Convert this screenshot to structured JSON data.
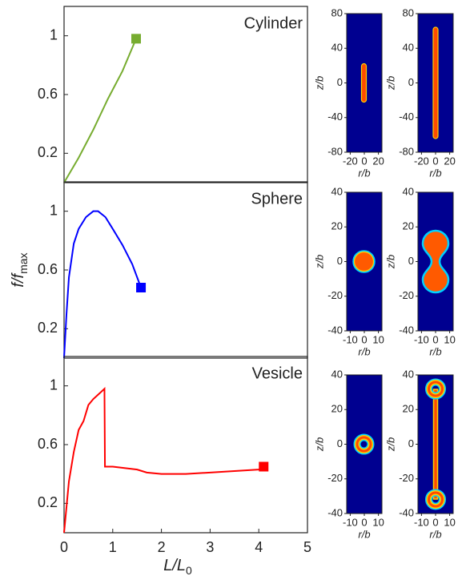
{
  "chart_data": [
    {
      "type": "line",
      "title": "Cylinder",
      "color": "#77ac30",
      "x": [
        0,
        0.3,
        0.6,
        0.9,
        1.2,
        1.48
      ],
      "values": [
        0,
        0.17,
        0.36,
        0.57,
        0.76,
        0.98
      ],
      "marker": {
        "x": 1.48,
        "y": 0.98
      },
      "xlim": [
        0,
        5
      ],
      "ylim": [
        0,
        1.2
      ],
      "yticks": [
        0.2,
        0.6,
        1
      ]
    },
    {
      "type": "line",
      "title": "Sphere",
      "color": "#0000ff",
      "x": [
        0,
        0.05,
        0.1,
        0.2,
        0.3,
        0.45,
        0.6,
        0.7,
        0.85,
        1.0,
        1.2,
        1.4,
        1.58
      ],
      "values": [
        0,
        0.3,
        0.55,
        0.78,
        0.88,
        0.96,
        1.0,
        1.0,
        0.96,
        0.88,
        0.77,
        0.64,
        0.48
      ],
      "marker": {
        "x": 1.58,
        "y": 0.48
      },
      "xlim": [
        0,
        5
      ],
      "ylim": [
        0,
        1.2
      ],
      "yticks": [
        0.2,
        0.6,
        1
      ],
      "ylabel": {
        "text": "f/f",
        "sub": "max"
      }
    },
    {
      "type": "line",
      "title": "Vesicle",
      "color": "#ff0000",
      "x": [
        0,
        0.1,
        0.2,
        0.3,
        0.4,
        0.5,
        0.6,
        0.7,
        0.83,
        0.84,
        1.0,
        1.5,
        1.7,
        2.0,
        2.5,
        3.0,
        3.5,
        4.0,
        4.1
      ],
      "values": [
        0,
        0.35,
        0.55,
        0.7,
        0.76,
        0.87,
        0.91,
        0.94,
        0.98,
        0.45,
        0.45,
        0.43,
        0.41,
        0.4,
        0.4,
        0.41,
        0.42,
        0.43,
        0.45
      ],
      "marker": {
        "x": 4.1,
        "y": 0.45
      },
      "xlim": [
        0,
        5
      ],
      "ylim": [
        0,
        1.2
      ],
      "yticks": [
        0.2,
        0.6,
        1
      ],
      "xticks": [
        0,
        1,
        2,
        3,
        4,
        5
      ],
      "xlabel": {
        "text": "L/L",
        "sub": "0"
      }
    },
    {
      "type": "image",
      "xlim": [
        -25,
        25
      ],
      "ylim": [
        -80,
        80
      ],
      "xticks": [
        -20,
        0,
        20
      ],
      "yticks": [
        -80,
        -40,
        0,
        40,
        80
      ],
      "xlabel": "r/b",
      "ylabel": "z/b"
    },
    {
      "type": "image",
      "xlim": [
        -25,
        25
      ],
      "ylim": [
        -80,
        80
      ],
      "xticks": [
        -20,
        0,
        20
      ],
      "yticks": [
        -80,
        -40,
        0,
        40,
        80
      ],
      "xlabel": "r/b",
      "ylabel": "z/b"
    },
    {
      "type": "image",
      "xlim": [
        -12.5,
        12.5
      ],
      "ylim": [
        -40,
        40
      ],
      "xticks": [
        -10,
        0,
        10
      ],
      "yticks": [
        -40,
        -20,
        0,
        20,
        40
      ],
      "xlabel": "r/b",
      "ylabel": "z/b"
    },
    {
      "type": "image",
      "xlim": [
        -12.5,
        12.5
      ],
      "ylim": [
        -40,
        40
      ],
      "xticks": [
        -10,
        0,
        10
      ],
      "yticks": [
        -40,
        -20,
        0,
        20,
        40
      ],
      "xlabel": "r/b",
      "ylabel": "z/b"
    },
    {
      "type": "image",
      "xlim": [
        -12.5,
        12.5
      ],
      "ylim": [
        -40,
        40
      ],
      "xticks": [
        -10,
        0,
        10
      ],
      "yticks": [
        -40,
        -20,
        0,
        20,
        40
      ],
      "xlabel": "r/b",
      "ylabel": "z/b"
    },
    {
      "type": "image",
      "xlim": [
        -12.5,
        12.5
      ],
      "ylim": [
        -40,
        40
      ],
      "xticks": [
        -10,
        0,
        10
      ],
      "yticks": [
        -40,
        -20,
        0,
        20,
        40
      ],
      "xlabel": "r/b",
      "ylabel": "z/b"
    }
  ]
}
